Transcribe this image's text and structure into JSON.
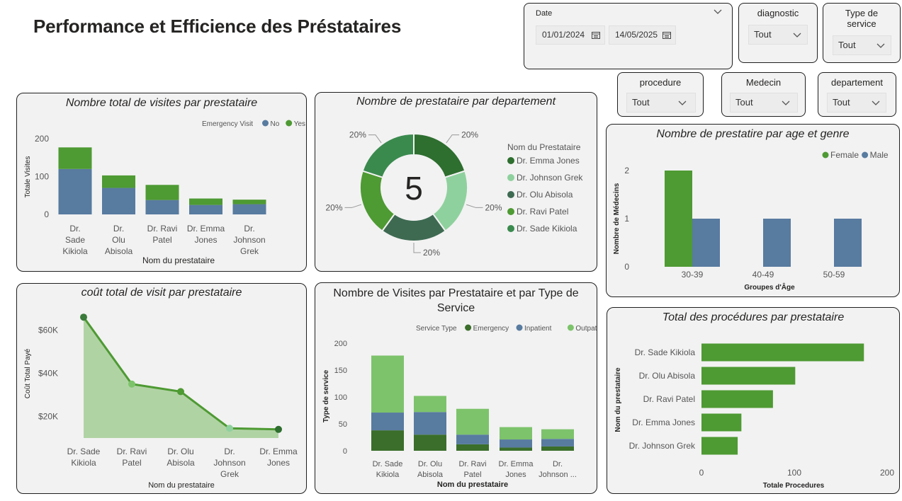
{
  "page_title": "Performance et Efficience des Préstataires",
  "colors": {
    "green": "#4e9a33",
    "blue": "#587ba0",
    "lightgreen": "#7dc36b",
    "darkgreen": "#3a6e2a",
    "area": "#b0d3a4"
  },
  "filters": {
    "date": {
      "label": "Date",
      "start": "01/01/2024",
      "end": "14/05/2025"
    },
    "diagnostic": {
      "label": "diagnostic",
      "value": "Tout"
    },
    "type_service": {
      "label": "Type de service",
      "value": "Tout"
    },
    "procedure": {
      "label": "procedure",
      "value": "Tout"
    },
    "medecin": {
      "label": "Medecin",
      "value": "Tout"
    },
    "departement": {
      "label": "departement",
      "value": "Tout"
    }
  },
  "chart_data": [
    {
      "id": "visits",
      "type": "bar",
      "stacked": true,
      "title": "Nombre total de visites par prestataire",
      "xlabel": "Nom du prestataire",
      "ylabel": "Totale Visites",
      "legend_title": "Emergency Visit",
      "categories": [
        "Dr. Sade Kikiola",
        "Dr. Olu Abisola",
        "Dr. Ravi Patel",
        "Dr. Emma Jones",
        "Dr. Johnson Grek"
      ],
      "series": [
        {
          "name": "No",
          "color": "#587ba0",
          "values": [
            120,
            70,
            38,
            25,
            27
          ]
        },
        {
          "name": "Yes",
          "color": "#4e9a33",
          "values": [
            57,
            33,
            40,
            17,
            12
          ]
        }
      ],
      "ylim": [
        0,
        200
      ],
      "yticks": [
        "0",
        "100",
        "200"
      ]
    },
    {
      "id": "dept",
      "type": "pie",
      "title": "Nombre de prestataire par departement",
      "center_label": "5",
      "legend_title": "Nom du Prestataire",
      "slices": [
        {
          "name": "Dr. Emma Jones",
          "value": 20,
          "label": "20%",
          "color": "#2e6e2f"
        },
        {
          "name": "Dr. Johnson Grek",
          "value": 20,
          "label": "20%",
          "color": "#8fd19e"
        },
        {
          "name": "Dr. Olu Abisola",
          "value": 20,
          "label": "20%",
          "color": "#3e6a52"
        },
        {
          "name": "Dr. Ravi Patel",
          "value": 20,
          "label": "20%",
          "color": "#4e9a33"
        },
        {
          "name": "Dr. Sade Kikiola",
          "value": 20,
          "label": "20%",
          "color": "#3a8a4e"
        }
      ]
    },
    {
      "id": "age",
      "type": "bar",
      "title": "Nombre de prestatire par age et genre",
      "xlabel": "Groupes d'Âge",
      "ylabel": "Nombre de Médecins",
      "categories": [
        "30-39",
        "40-49",
        "50-59"
      ],
      "series": [
        {
          "name": "Female",
          "color": "#4e9a33",
          "values": [
            2,
            0,
            0
          ]
        },
        {
          "name": "Male",
          "color": "#587ba0",
          "values": [
            1,
            1,
            1
          ]
        }
      ],
      "ylim": [
        0,
        2
      ],
      "yticks": [
        "0",
        "1",
        "2"
      ]
    },
    {
      "id": "cost",
      "type": "area",
      "title": "coût total de visit par prestataire",
      "xlabel": "Nom du prestataire",
      "ylabel": "Coût Total Payé",
      "categories": [
        "Dr. Sade Kikiola",
        "Dr. Ravi Patel",
        "Dr. Olu Abisola",
        "Dr. Johnson Grek",
        "Dr. Emma Jones"
      ],
      "values": [
        66000,
        35000,
        31500,
        14500,
        14000
      ],
      "ylim": [
        10000,
        70000
      ],
      "yticks": [
        {
          "v": 60000,
          "t": "$60K"
        },
        {
          "v": 40000,
          "t": "$40K"
        },
        {
          "v": 20000,
          "t": "$20K"
        }
      ]
    },
    {
      "id": "service",
      "type": "bar",
      "stacked": true,
      "title": "Nombre de Visites par Prestataire et par Type de Service",
      "xlabel": "Nom du prestataire",
      "ylabel": "Type de service",
      "legend_title": "Service Type",
      "categories": [
        "Dr. Sade Kikiola",
        "Dr. Olu Abisola",
        "Dr. Ravi Patel",
        "Dr. Emma Jones",
        "Dr. Johnson ..."
      ],
      "series": [
        {
          "name": "Emergency",
          "color": "#3a6e2a",
          "values": [
            38,
            30,
            12,
            6,
            8
          ]
        },
        {
          "name": "Inpatient",
          "color": "#587ba0",
          "values": [
            33,
            42,
            18,
            15,
            14
          ]
        },
        {
          "name": "Outpatient",
          "color": "#7dc36b",
          "values": [
            106,
            30,
            48,
            23,
            18
          ]
        }
      ],
      "ylim": [
        0,
        200
      ],
      "yticks": [
        "0",
        "50",
        "100",
        "150",
        "200"
      ]
    },
    {
      "id": "procedures",
      "type": "bar",
      "orientation": "horizontal",
      "title": "Total des procédures par prestataire",
      "xlabel": "Totale Procedures",
      "ylabel": "Nom du prestataire",
      "categories": [
        "Dr. Sade Kikiola",
        "Dr. Olu Abisola",
        "Dr. Ravi Patel",
        "Dr. Emma Jones",
        "Dr. Johnson Grek"
      ],
      "values": [
        175,
        101,
        77,
        43,
        39
      ],
      "xlim": [
        0,
        200
      ],
      "xticks": [
        "0",
        "100",
        "200"
      ]
    }
  ]
}
